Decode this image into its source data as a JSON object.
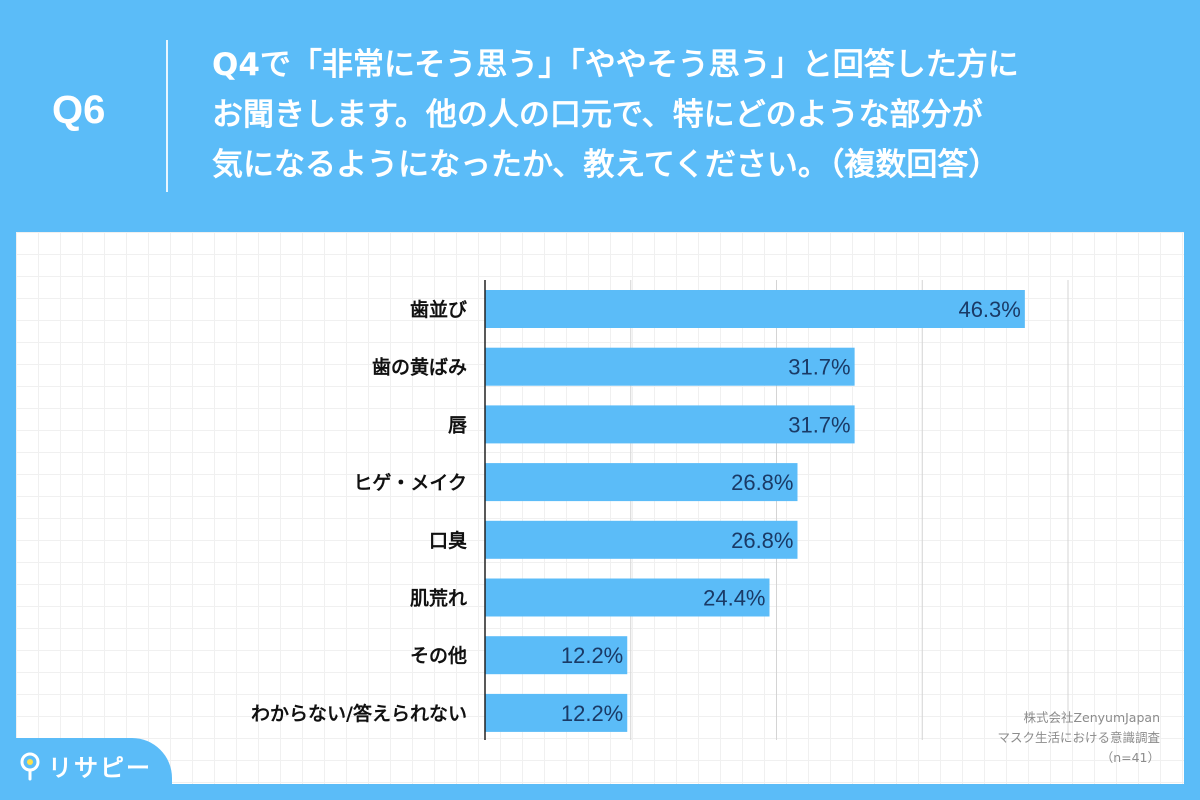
{
  "header": {
    "question_number": "Q6",
    "question_lines": [
      "Q4で「非常にそう思う」「ややそう思う」と回答した方に",
      "お聞きします。他の人の口元で、特にどのような部分が",
      "気になるようになったか、教えてください。（複数回答）"
    ]
  },
  "chart_data": {
    "type": "bar",
    "orientation": "horizontal",
    "categories": [
      "歯並び",
      "歯の黄ばみ",
      "唇",
      "ヒゲ・メイク",
      "口臭",
      "肌荒れ",
      "その他",
      "わからない/答えられない"
    ],
    "values": [
      46.3,
      31.7,
      31.7,
      26.8,
      26.8,
      24.4,
      12.2,
      12.2
    ],
    "value_labels": [
      "46.3%",
      "31.7%",
      "31.7%",
      "26.8%",
      "26.8%",
      "24.4%",
      "12.2%",
      "12.2%"
    ],
    "xlim": [
      0,
      50
    ],
    "grid": true,
    "bar_color": "#5bbcf8",
    "label_color": "#1a3a66"
  },
  "footer": {
    "company": "株式会社ZenyumJapan",
    "survey": "マスク生活における意識調査",
    "sample": "（n=41）"
  },
  "logo": {
    "text": "リサピー"
  }
}
